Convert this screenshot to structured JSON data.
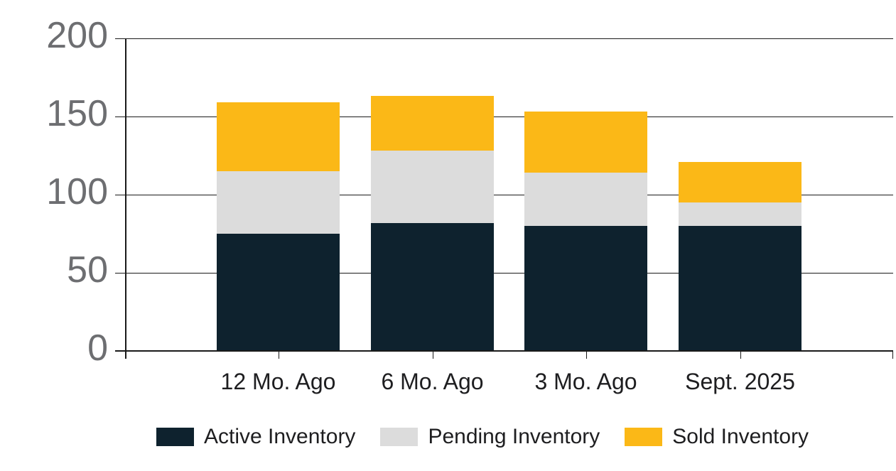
{
  "chart_data": {
    "type": "bar",
    "stacked": true,
    "categories": [
      "12 Mo. Ago",
      "6 Mo. Ago",
      "3 Mo. Ago",
      "Sept. 2025"
    ],
    "series": [
      {
        "name": "Active Inventory",
        "color": "#0e222e",
        "values": [
          75,
          82,
          80,
          80
        ]
      },
      {
        "name": "Pending Inventory",
        "color": "#dcdcdc",
        "values": [
          40,
          46,
          34,
          15
        ]
      },
      {
        "name": "Sold Inventory",
        "color": "#fbb817",
        "values": [
          44,
          35,
          39,
          26
        ]
      }
    ],
    "title": "",
    "xlabel": "",
    "ylabel": "",
    "yticks": [
      0,
      50,
      100,
      150,
      200
    ],
    "ylim": [
      0,
      200
    ],
    "grid": true,
    "legend_position": "bottom",
    "colors": {
      "axis_tick_label": "#6d6e71",
      "category_and_legend_text": "#1e1e20",
      "gridline": "#1a1a1a",
      "background": "#ffffff"
    }
  }
}
